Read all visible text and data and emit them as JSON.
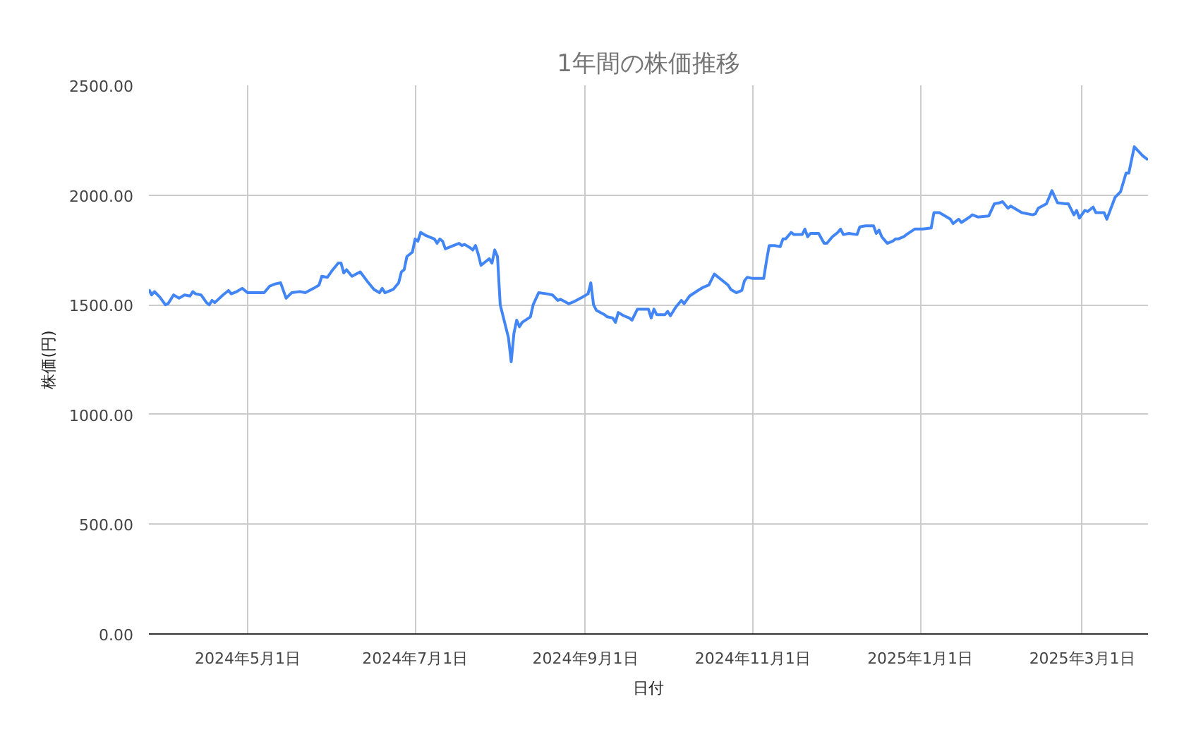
{
  "chart_data": {
    "type": "line",
    "title": "1年間の株価推移",
    "xlabel": "日付",
    "ylabel": "株価(円)",
    "xlim": [
      "2024-03-26",
      "2025-03-25"
    ],
    "ylim": [
      0,
      2500
    ],
    "xticks": [
      {
        "value": "2024-05-01",
        "label": "2024年5月1日"
      },
      {
        "value": "2024-07-01",
        "label": "2024年7月1日"
      },
      {
        "value": "2024-09-01",
        "label": "2024年9月1日"
      },
      {
        "value": "2024-11-01",
        "label": "2024年11月1日"
      },
      {
        "value": "2025-01-01",
        "label": "2025年1月1日"
      },
      {
        "value": "2025-03-01",
        "label": "2025年3月1日"
      }
    ],
    "yticks": [
      {
        "value": 0,
        "label": "0.00"
      },
      {
        "value": 500,
        "label": "500.00"
      },
      {
        "value": 1000,
        "label": "1000.00"
      },
      {
        "value": 1500,
        "label": "1500.00"
      },
      {
        "value": 2000,
        "label": "2000.00"
      },
      {
        "value": 2500,
        "label": "2500.00"
      }
    ],
    "grid": true,
    "marker": "none",
    "line_style": "solid",
    "series": [
      {
        "color": "#4285f4",
        "x": [
          "2024-03-26",
          "2024-03-27",
          "2024-03-28",
          "2024-03-30",
          "2024-04-01",
          "2024-04-02",
          "2024-04-04",
          "2024-04-06",
          "2024-04-08",
          "2024-04-10",
          "2024-04-11",
          "2024-04-12",
          "2024-04-14",
          "2024-04-16",
          "2024-04-17",
          "2024-04-18",
          "2024-04-19",
          "2024-04-22",
          "2024-04-24",
          "2024-04-25",
          "2024-04-27",
          "2024-04-29",
          "2024-05-01",
          "2024-05-04",
          "2024-05-07",
          "2024-05-09",
          "2024-05-11",
          "2024-05-13",
          "2024-05-15",
          "2024-05-17",
          "2024-05-20",
          "2024-05-22",
          "2024-05-25",
          "2024-05-27",
          "2024-05-28",
          "2024-05-30",
          "2024-06-01",
          "2024-06-03",
          "2024-06-04",
          "2024-06-05",
          "2024-06-06",
          "2024-06-08",
          "2024-06-11",
          "2024-06-14",
          "2024-06-16",
          "2024-06-18",
          "2024-06-19",
          "2024-06-20",
          "2024-06-23",
          "2024-06-25",
          "2024-06-26",
          "2024-06-27",
          "2024-06-28",
          "2024-06-30",
          "2024-07-01",
          "2024-07-02",
          "2024-07-03",
          "2024-07-05",
          "2024-07-08",
          "2024-07-09",
          "2024-07-10",
          "2024-07-11",
          "2024-07-12",
          "2024-07-15",
          "2024-07-17",
          "2024-07-18",
          "2024-07-19",
          "2024-07-21",
          "2024-07-22",
          "2024-07-23",
          "2024-07-24",
          "2024-07-25",
          "2024-07-27",
          "2024-07-28",
          "2024-07-29",
          "2024-07-30",
          "2024-07-31",
          "2024-08-01",
          "2024-08-04",
          "2024-08-05",
          "2024-08-06",
          "2024-08-07",
          "2024-08-08",
          "2024-08-09",
          "2024-08-12",
          "2024-08-13",
          "2024-08-15",
          "2024-08-18",
          "2024-08-20",
          "2024-08-22",
          "2024-08-23",
          "2024-08-26",
          "2024-08-28",
          "2024-08-31",
          "2024-09-02",
          "2024-09-03",
          "2024-09-04",
          "2024-09-05",
          "2024-09-08",
          "2024-09-09",
          "2024-09-11",
          "2024-09-12",
          "2024-09-13",
          "2024-09-15",
          "2024-09-17",
          "2024-09-18",
          "2024-09-20",
          "2024-09-22",
          "2024-09-24",
          "2024-09-25",
          "2024-09-26",
          "2024-09-27",
          "2024-09-30",
          "2024-10-01",
          "2024-10-02",
          "2024-10-04",
          "2024-10-06",
          "2024-10-07",
          "2024-10-09",
          "2024-10-12",
          "2024-10-14",
          "2024-10-16",
          "2024-10-18",
          "2024-10-20",
          "2024-10-23",
          "2024-10-24",
          "2024-10-26",
          "2024-10-28",
          "2024-10-29",
          "2024-10-30",
          "2024-11-01",
          "2024-11-05",
          "2024-11-06",
          "2024-11-07",
          "2024-11-09",
          "2024-11-11",
          "2024-11-12",
          "2024-11-13",
          "2024-11-15",
          "2024-11-16",
          "2024-11-19",
          "2024-11-20",
          "2024-11-21",
          "2024-11-22",
          "2024-11-25",
          "2024-11-27",
          "2024-11-28",
          "2024-11-30",
          "2024-12-02",
          "2024-12-03",
          "2024-12-04",
          "2024-12-06",
          "2024-12-09",
          "2024-12-10",
          "2024-12-12",
          "2024-12-15",
          "2024-12-16",
          "2024-12-17",
          "2024-12-18",
          "2024-12-19",
          "2024-12-20",
          "2024-12-22",
          "2024-12-23",
          "2024-12-24",
          "2024-12-26",
          "2024-12-27",
          "2024-12-30",
          "2025-01-02",
          "2025-01-05",
          "2025-01-06",
          "2025-01-08",
          "2025-01-12",
          "2025-01-13",
          "2025-01-15",
          "2025-01-16",
          "2025-01-19",
          "2025-01-20",
          "2025-01-22",
          "2025-01-26",
          "2025-01-28",
          "2025-01-30",
          "2025-01-31",
          "2025-02-02",
          "2025-02-03",
          "2025-02-07",
          "2025-02-11",
          "2025-02-12",
          "2025-02-13",
          "2025-02-16",
          "2025-02-18",
          "2025-02-20",
          "2025-02-23",
          "2025-02-24",
          "2025-02-26",
          "2025-02-27",
          "2025-02-28",
          "2025-03-02",
          "2025-03-03",
          "2025-03-05",
          "2025-03-06",
          "2025-03-09",
          "2025-03-10",
          "2025-03-13",
          "2025-03-15",
          "2025-03-17",
          "2025-03-18",
          "2025-03-20",
          "2025-03-23",
          "2025-03-25"
        ],
        "values": [
          1570,
          1545,
          1560,
          1535,
          1500,
          1505,
          1545,
          1530,
          1545,
          1540,
          1560,
          1550,
          1545,
          1510,
          1500,
          1520,
          1510,
          1545,
          1565,
          1550,
          1560,
          1575,
          1555,
          1555,
          1555,
          1585,
          1595,
          1600,
          1530,
          1555,
          1560,
          1555,
          1575,
          1590,
          1630,
          1625,
          1660,
          1690,
          1690,
          1645,
          1660,
          1630,
          1650,
          1600,
          1570,
          1555,
          1575,
          1555,
          1570,
          1600,
          1650,
          1660,
          1720,
          1740,
          1800,
          1790,
          1830,
          1815,
          1800,
          1780,
          1800,
          1790,
          1755,
          1770,
          1780,
          1770,
          1775,
          1760,
          1750,
          1770,
          1730,
          1680,
          1700,
          1710,
          1690,
          1750,
          1720,
          1500,
          1350,
          1240,
          1370,
          1430,
          1400,
          1420,
          1445,
          1500,
          1555,
          1550,
          1545,
          1520,
          1525,
          1505,
          1515,
          1535,
          1550,
          1600,
          1500,
          1475,
          1455,
          1445,
          1440,
          1420,
          1465,
          1450,
          1440,
          1430,
          1480,
          1480,
          1480,
          1440,
          1480,
          1455,
          1455,
          1470,
          1450,
          1490,
          1520,
          1505,
          1540,
          1565,
          1580,
          1590,
          1640,
          1620,
          1590,
          1570,
          1555,
          1565,
          1610,
          1625,
          1620,
          1620,
          1700,
          1770,
          1770,
          1765,
          1800,
          1800,
          1830,
          1820,
          1820,
          1845,
          1810,
          1825,
          1825,
          1780,
          1780,
          1810,
          1830,
          1845,
          1820,
          1825,
          1820,
          1855,
          1860,
          1860,
          1825,
          1840,
          1810,
          1795,
          1780,
          1790,
          1800,
          1800,
          1810,
          1820,
          1845,
          1845,
          1850,
          1920,
          1920,
          1890,
          1870,
          1890,
          1875,
          1900,
          1910,
          1900,
          1905,
          1960,
          1965,
          1970,
          1940,
          1950,
          1920,
          1910,
          1915,
          1940,
          1960,
          2020,
          1965,
          1960,
          1960,
          1910,
          1930,
          1895,
          1930,
          1925,
          1945,
          1920,
          1920,
          1890,
          1990,
          2015,
          2100,
          2100,
          2220,
          2180,
          2160
        ]
      }
    ]
  }
}
